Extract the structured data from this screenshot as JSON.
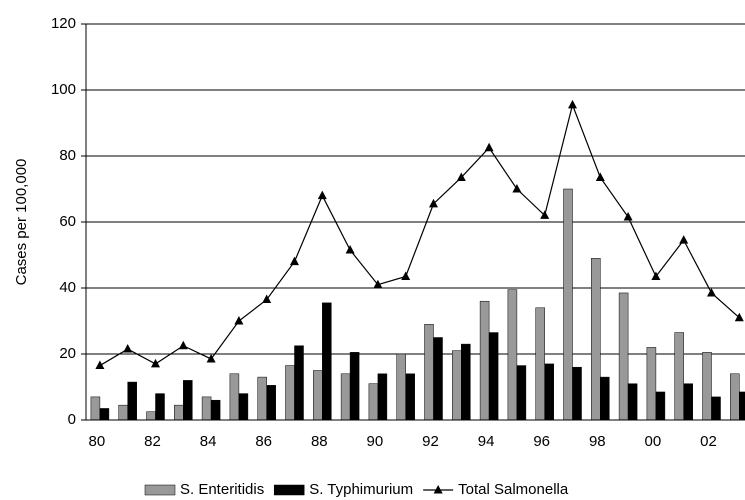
{
  "chart_data": {
    "type": "combo",
    "categories": [
      "80",
      null,
      "82",
      null,
      "84",
      null,
      "86",
      null,
      "88",
      null,
      "90",
      null,
      "92",
      null,
      "94",
      null,
      "96",
      null,
      "98",
      null,
      "00",
      null,
      "02",
      null
    ],
    "ylabel": "Cases per 100,000",
    "ylim": [
      0,
      120
    ],
    "yticks": [
      0,
      20,
      40,
      60,
      80,
      100,
      120
    ],
    "grid": true,
    "legend": "bottom",
    "series": [
      {
        "name": "S. Enteritidis",
        "type": "bar",
        "color": "#999999",
        "values": [
          7,
          4.5,
          2.5,
          4.5,
          7,
          14,
          13,
          16.5,
          15,
          14,
          11,
          20,
          29,
          21,
          36,
          39.5,
          34,
          70,
          49,
          38.5,
          22,
          26.5,
          20.5,
          14
        ]
      },
      {
        "name": "S. Typhimurium",
        "type": "bar",
        "color": "#000000",
        "values": [
          3.5,
          11.5,
          8,
          12,
          6,
          8,
          10.5,
          22.5,
          35.5,
          20.5,
          14,
          14,
          25,
          23,
          26.5,
          16.5,
          17,
          16,
          13,
          11,
          8.5,
          11,
          7,
          8.5
        ]
      },
      {
        "name": "Total Salmonella",
        "type": "line",
        "color": "#000000",
        "values": [
          16.5,
          21.5,
          17,
          22.5,
          18.5,
          30,
          36.5,
          48,
          68,
          51.5,
          41,
          43.5,
          65.5,
          73.5,
          82.5,
          70,
          62,
          95.5,
          73.5,
          61.5,
          43.5,
          54.5,
          38.5,
          31
        ]
      }
    ]
  }
}
